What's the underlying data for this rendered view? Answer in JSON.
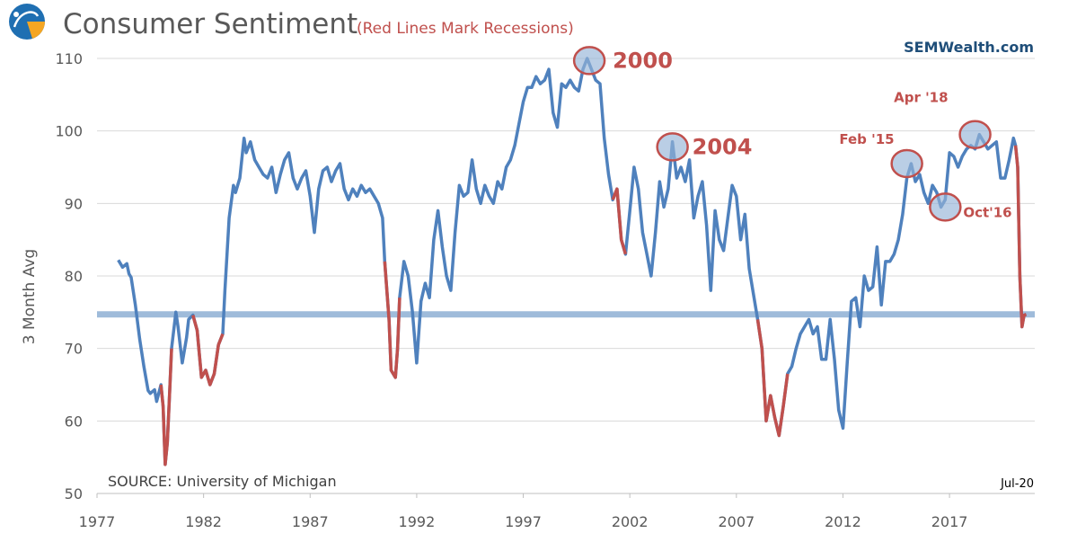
{
  "header": {
    "title": "Consumer Sentiment",
    "subtitle": "(Red Lines Mark Recessions)",
    "brand": "SEMWealth.com",
    "logo_icon": "sem-swoosh-logo-icon"
  },
  "footer": {
    "source": "SOURCE:  University  of Michigan",
    "last_date": "Jul-20"
  },
  "colors": {
    "line": "#4f81bd",
    "recession": "#c0504d",
    "reference": "#9fbbda",
    "grid": "#d9d9d9",
    "highlight_fill": "#95b3d7",
    "highlight_stroke": "#c0504d"
  },
  "chart_data": {
    "type": "line",
    "title": "Consumer Sentiment",
    "xlabel": "",
    "ylabel": "3 Month Avg",
    "xlim": [
      1977,
      2021
    ],
    "ylim": [
      50,
      110
    ],
    "x_ticks": [
      1977,
      1982,
      1987,
      1992,
      1997,
      2002,
      2007,
      2012,
      2017
    ],
    "x_tick_labels": [
      "1977",
      "1982",
      "1987",
      "1992",
      "1997",
      "2002",
      "2007",
      "2012",
      "2017"
    ],
    "y_ticks": [
      50,
      60,
      70,
      80,
      90,
      100,
      110
    ],
    "y_tick_labels": [
      "50",
      "60",
      "70",
      "80",
      "90",
      "100",
      "110"
    ],
    "grid": true,
    "reference_line": 74.7,
    "recessions": [
      [
        1980.0,
        1980.5
      ],
      [
        1981.5,
        1982.9
      ],
      [
        1990.5,
        1991.2
      ],
      [
        2001.2,
        2001.9
      ],
      [
        2007.9,
        2009.5
      ],
      [
        2020.1,
        2020.6
      ]
    ],
    "series": [
      {
        "name": "Consumer Sentiment (3 Month Avg)",
        "x": [
          1978.0,
          1978.2,
          1978.4,
          1978.5,
          1978.6,
          1978.8,
          1979.0,
          1979.2,
          1979.4,
          1979.5,
          1979.7,
          1979.8,
          1980.0,
          1980.1,
          1980.2,
          1980.3,
          1980.4,
          1980.5,
          1980.7,
          1980.8,
          1981.0,
          1981.2,
          1981.3,
          1981.5,
          1981.7,
          1981.9,
          1982.1,
          1982.3,
          1982.5,
          1982.7,
          1982.9,
          1983.0,
          1983.2,
          1983.4,
          1983.5,
          1983.7,
          1983.9,
          1984.0,
          1984.2,
          1984.4,
          1984.6,
          1984.8,
          1985.0,
          1985.2,
          1985.4,
          1985.6,
          1985.8,
          1986.0,
          1986.2,
          1986.4,
          1986.6,
          1986.8,
          1987.0,
          1987.2,
          1987.4,
          1987.6,
          1987.8,
          1988.0,
          1988.2,
          1988.4,
          1988.6,
          1988.8,
          1989.0,
          1989.2,
          1989.4,
          1989.6,
          1989.8,
          1990.0,
          1990.2,
          1990.4,
          1990.5,
          1990.7,
          1990.8,
          1991.0,
          1991.1,
          1991.2,
          1991.4,
          1991.6,
          1991.8,
          1992.0,
          1992.2,
          1992.4,
          1992.6,
          1992.8,
          1993.0,
          1993.2,
          1993.4,
          1993.6,
          1993.8,
          1994.0,
          1994.2,
          1994.4,
          1994.6,
          1994.8,
          1995.0,
          1995.2,
          1995.4,
          1995.6,
          1995.8,
          1996.0,
          1996.2,
          1996.4,
          1996.6,
          1996.8,
          1997.0,
          1997.2,
          1997.4,
          1997.6,
          1997.8,
          1998.0,
          1998.2,
          1998.4,
          1998.6,
          1998.8,
          1999.0,
          1999.2,
          1999.4,
          1999.6,
          1999.8,
          2000.0,
          2000.2,
          2000.4,
          2000.6,
          2000.8,
          2001.0,
          2001.2,
          2001.4,
          2001.6,
          2001.8,
          2002.0,
          2002.2,
          2002.4,
          2002.6,
          2002.8,
          2003.0,
          2003.2,
          2003.4,
          2003.6,
          2003.8,
          2004.0,
          2004.2,
          2004.4,
          2004.6,
          2004.8,
          2005.0,
          2005.2,
          2005.4,
          2005.6,
          2005.8,
          2006.0,
          2006.2,
          2006.4,
          2006.6,
          2006.8,
          2007.0,
          2007.2,
          2007.4,
          2007.6,
          2007.8,
          2008.0,
          2008.2,
          2008.4,
          2008.6,
          2008.8,
          2009.0,
          2009.2,
          2009.4,
          2009.6,
          2009.8,
          2010.0,
          2010.2,
          2010.4,
          2010.6,
          2010.8,
          2011.0,
          2011.2,
          2011.4,
          2011.6,
          2011.8,
          2012.0,
          2012.2,
          2012.4,
          2012.6,
          2012.8,
          2013.0,
          2013.2,
          2013.4,
          2013.6,
          2013.8,
          2014.0,
          2014.2,
          2014.4,
          2014.6,
          2014.8,
          2015.0,
          2015.2,
          2015.4,
          2015.6,
          2015.8,
          2016.0,
          2016.2,
          2016.4,
          2016.6,
          2016.8,
          2017.0,
          2017.2,
          2017.4,
          2017.6,
          2017.8,
          2018.0,
          2018.2,
          2018.4,
          2018.6,
          2018.8,
          2019.0,
          2019.2,
          2019.4,
          2019.6,
          2019.8,
          2020.0,
          2020.1,
          2020.2,
          2020.3,
          2020.4,
          2020.5,
          2020.6
        ],
        "values": [
          82.2,
          81.2,
          81.7,
          80.3,
          79.8,
          76.0,
          71.3,
          67.5,
          64.2,
          63.8,
          64.3,
          62.7,
          65.0,
          62.0,
          54.0,
          57.0,
          63.5,
          70.0,
          75.0,
          73.0,
          68.0,
          71.5,
          74.0,
          74.6,
          72.5,
          66.0,
          67.0,
          65.0,
          66.5,
          70.5,
          72.0,
          78.0,
          88.0,
          92.5,
          91.5,
          93.5,
          99.0,
          97.0,
          98.5,
          96.0,
          95.0,
          94.0,
          93.5,
          95.0,
          91.5,
          94.0,
          96.0,
          97.0,
          93.5,
          92.0,
          93.5,
          94.5,
          91.0,
          86.0,
          92.0,
          94.5,
          95.0,
          93.0,
          94.5,
          95.5,
          92.0,
          90.5,
          92.0,
          91.0,
          92.5,
          91.5,
          92.0,
          91.0,
          90.0,
          88.0,
          82.0,
          74.0,
          67.0,
          66.0,
          70.0,
          77.0,
          82.0,
          80.0,
          75.0,
          68.0,
          76.5,
          79.0,
          77.0,
          85.0,
          89.0,
          84.0,
          80.0,
          78.0,
          86.0,
          92.5,
          91.0,
          91.5,
          96.0,
          92.0,
          90.0,
          92.5,
          91.0,
          90.0,
          93.0,
          92.0,
          95.0,
          96.0,
          98.0,
          101.0,
          104.0,
          106.0,
          106.0,
          107.5,
          106.5,
          107.0,
          108.5,
          102.5,
          100.5,
          106.5,
          106.0,
          107.0,
          106.0,
          105.5,
          108.5,
          110.0,
          108.5,
          107.0,
          106.5,
          99.0,
          94.0,
          90.5,
          92.0,
          85.0,
          83.0,
          89.0,
          95.0,
          92.0,
          86.0,
          83.0,
          80.0,
          86.0,
          93.0,
          89.5,
          92.0,
          98.5,
          93.5,
          95.0,
          93.0,
          96.0,
          88.0,
          91.0,
          93.0,
          87.0,
          78.0,
          89.0,
          85.0,
          83.5,
          88.0,
          92.5,
          91.0,
          85.0,
          88.5,
          81.0,
          77.5,
          74.0,
          70.0,
          60.0,
          63.5,
          60.5,
          58.0,
          62.0,
          66.5,
          67.5,
          70.0,
          72.0,
          73.0,
          74.0,
          72.0,
          73.0,
          68.5,
          68.5,
          74.0,
          68.5,
          61.5,
          59.0,
          68.0,
          76.5,
          77.0,
          73.0,
          80.0,
          78.0,
          78.5,
          84.0,
          76.0,
          82.0,
          82.0,
          83.0,
          85.0,
          88.5,
          93.5,
          95.5,
          93.0,
          94.0,
          91.5,
          90.0,
          92.5,
          91.5,
          89.5,
          90.5,
          97.0,
          96.5,
          95.0,
          96.5,
          97.5,
          98.0,
          97.5,
          99.5,
          98.5,
          97.5,
          98.0,
          98.5,
          93.5,
          93.5,
          96.0,
          99.0,
          98.0,
          95.0,
          80.0,
          73.0,
          74.6,
          74.7
        ]
      }
    ],
    "annotations": [
      {
        "label": "2000",
        "x": 2000.1,
        "y": 109.7
      },
      {
        "label": "2004",
        "x": 2004.0,
        "y": 97.8
      },
      {
        "label": "Feb '15",
        "x": 2015.0,
        "y": 95.5
      },
      {
        "label": "Oct'16",
        "x": 2016.8,
        "y": 89.5
      },
      {
        "label": "Apr '18",
        "x": 2018.2,
        "y": 99.5
      }
    ]
  }
}
